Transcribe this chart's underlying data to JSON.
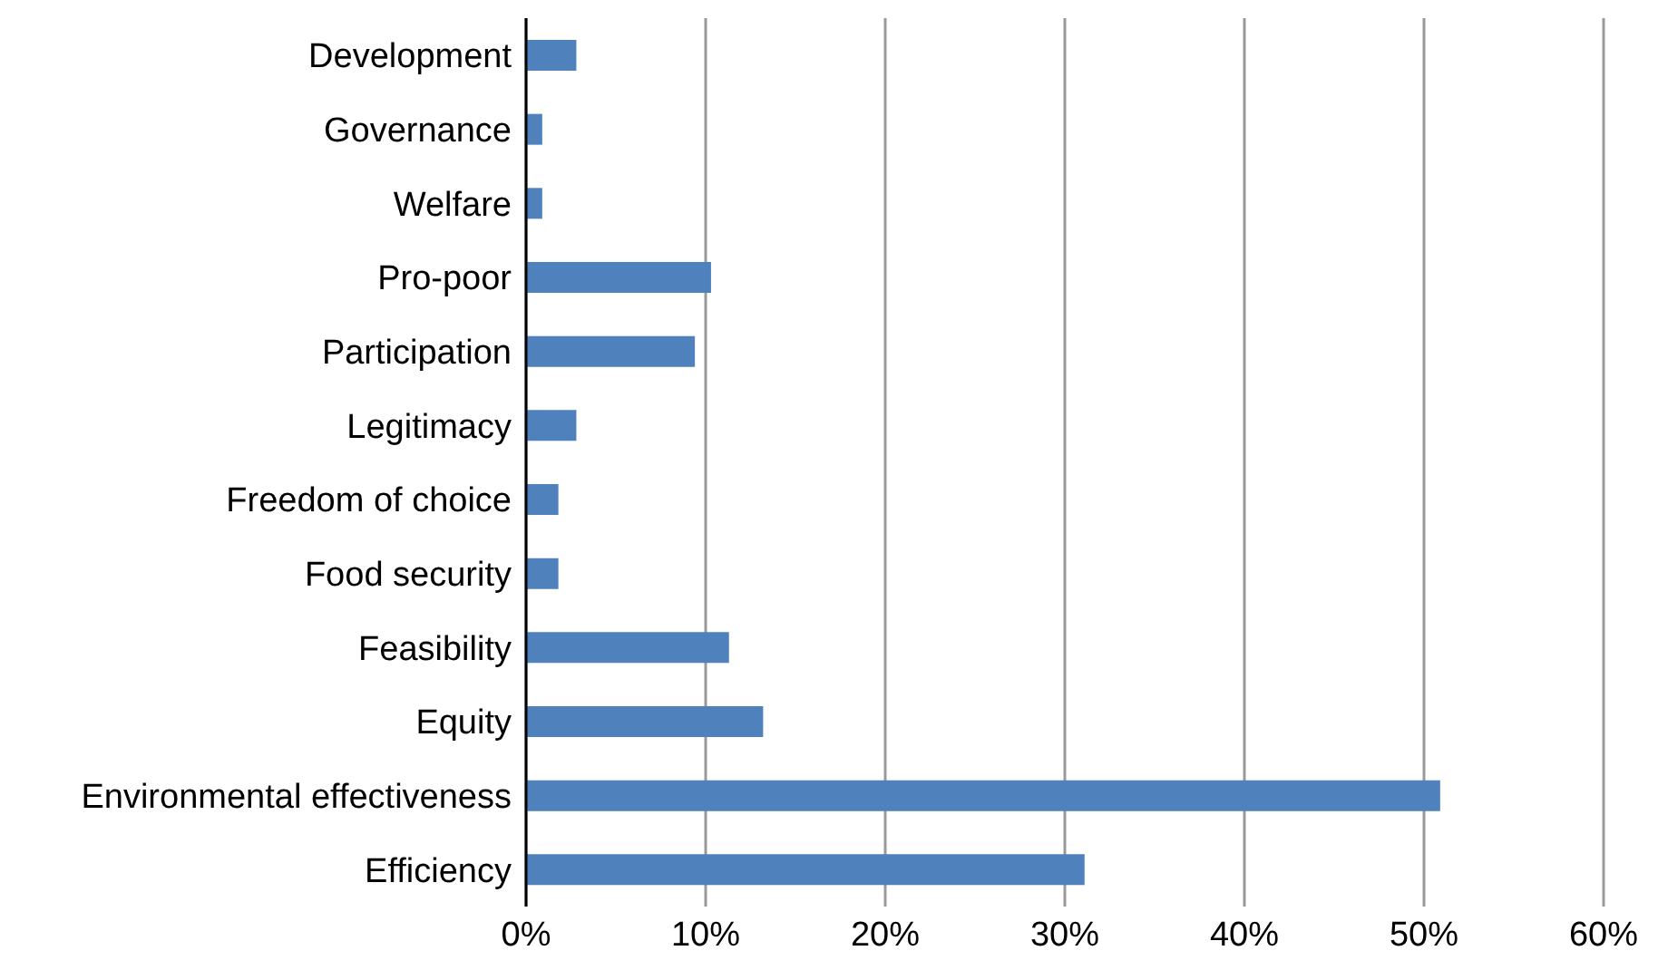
{
  "chart_data": {
    "type": "bar",
    "orientation": "horizontal",
    "categories": [
      "Development",
      "Governance",
      "Welfare",
      "Pro-poor",
      "Participation",
      "Legitimacy",
      "Freedom of choice",
      "Food security",
      "Feasibility",
      "Equity",
      "Environmental effectiveness",
      "Efficiency"
    ],
    "values": [
      2.8,
      0.9,
      0.9,
      10.3,
      9.4,
      2.8,
      1.8,
      1.8,
      11.3,
      13.2,
      50.9,
      31.1
    ],
    "color": "#4f81bd",
    "xlim": [
      0,
      60
    ],
    "xticks": [
      {
        "value": 0,
        "label": "0%"
      },
      {
        "value": 10,
        "label": "10%"
      },
      {
        "value": 20,
        "label": "20%"
      },
      {
        "value": 30,
        "label": "30%"
      },
      {
        "value": 40,
        "label": "40%"
      },
      {
        "value": 50,
        "label": "50%"
      },
      {
        "value": 60,
        "label": "60%"
      }
    ],
    "grid": "x"
  }
}
